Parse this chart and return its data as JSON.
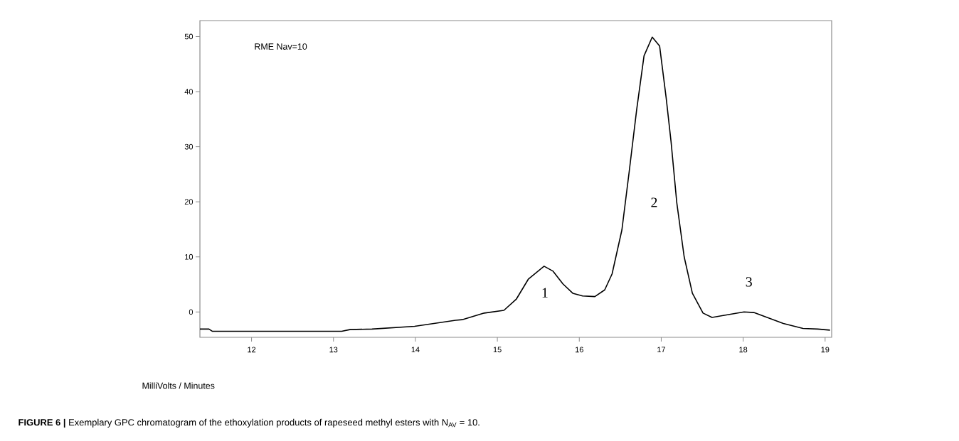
{
  "chart_data": {
    "type": "line",
    "xlabel": "MilliVolts / Minutes",
    "x": [
      11.37,
      11.48,
      11.52,
      12.1,
      13.1,
      13.2,
      13.47,
      13.99,
      14.27,
      14.49,
      14.57,
      14.84,
      15.08,
      15.23,
      15.38,
      15.57,
      15.68,
      15.8,
      15.92,
      16.04,
      16.19,
      16.31,
      16.4,
      16.52,
      16.61,
      16.7,
      16.79,
      16.89,
      16.98,
      17.06,
      17.12,
      17.19,
      17.28,
      17.38,
      17.51,
      17.62,
      17.77,
      18.01,
      18.13,
      18.31,
      18.49,
      18.73,
      18.91,
      19.06
    ],
    "series": [
      {
        "color": "#000000",
        "line_style": "solid",
        "values": [
          -3.1,
          -3.1,
          -3.5,
          -3.5,
          -3.5,
          -3.2,
          -3.1,
          -2.6,
          -2.0,
          -1.5,
          -1.4,
          -0.2,
          0.3,
          2.3,
          6.0,
          8.3,
          7.4,
          5.1,
          3.4,
          2.9,
          2.8,
          4.0,
          6.9,
          14.9,
          25.6,
          36.7,
          46.5,
          49.9,
          48.3,
          38.9,
          30.9,
          19.8,
          10.0,
          3.4,
          -0.2,
          -1.0,
          -0.6,
          0.0,
          -0.1,
          -1.1,
          -2.1,
          -3.0,
          -3.1,
          -3.3
        ]
      }
    ],
    "xlim": [
      11.37,
      19.08
    ],
    "ylim": [
      -4.6,
      52.9
    ],
    "xticks": [
      12,
      13,
      14,
      15,
      16,
      17,
      18,
      19
    ],
    "yticks": [
      0,
      10,
      20,
      30,
      40,
      50
    ],
    "grid": false,
    "annotations": [
      "RME Nav=10",
      "1",
      "2",
      "3",
      "**FIGURE 6 |** Exemplary GPC chromatogram of the ethoxylation products of rapeseed methyl esters with N$_{AV}$ = 10."
    ]
  }
}
